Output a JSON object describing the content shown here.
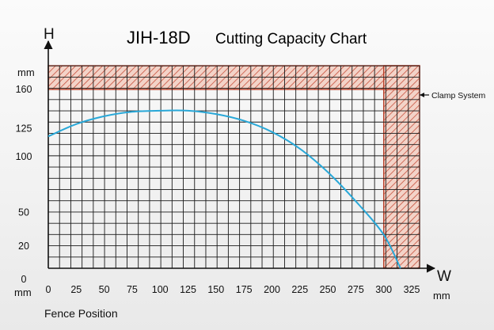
{
  "chart_data": {
    "type": "line",
    "title_model": "JIH-18D",
    "title_text": "Cutting Capacity Chart",
    "y_axis_letter": "H",
    "x_axis_letter": "W",
    "y_unit": "mm",
    "x_unit": "mm",
    "y_origin_unit": "mm",
    "xlabel": "Fence Position",
    "x_ticks": [
      0,
      25,
      50,
      75,
      100,
      125,
      150,
      175,
      200,
      225,
      250,
      275,
      300,
      325
    ],
    "y_ticks": [
      0,
      20,
      50,
      100,
      125,
      160
    ],
    "xlim": [
      0,
      325
    ],
    "clamp_zone": {
      "label": "Clamp System",
      "h_min": 160,
      "h_max": 190,
      "w_min": 300,
      "w_max": 325
    },
    "series": [
      {
        "color": "#29a8d8",
        "x": [
          0,
          25,
          50,
          75,
          100,
          125,
          150,
          175,
          200,
          225,
          250,
          275,
          300,
          315
        ],
        "y": [
          118,
          129,
          136,
          140,
          141,
          141,
          138,
          132,
          122,
          107,
          86,
          60,
          30,
          0
        ]
      }
    ],
    "grid": true,
    "hatch_color": "#c8503c"
  }
}
